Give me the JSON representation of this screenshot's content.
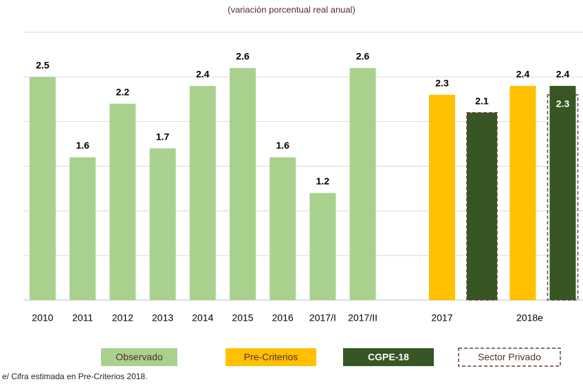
{
  "chart_data": {
    "type": "bar",
    "subtitle": "(variación porcentual real anual)",
    "categories": [
      "2010",
      "2011",
      "2012",
      "2013",
      "2014",
      "2015",
      "2016",
      "2017/I",
      "2017/II",
      "2017",
      "2018e"
    ],
    "series": [
      {
        "name": "Observado",
        "color": "#a9d18e",
        "values": [
          2.5,
          1.6,
          2.2,
          1.7,
          2.4,
          2.6,
          1.6,
          1.2,
          2.6,
          null,
          null
        ]
      },
      {
        "name": "Pre-Criterios",
        "color": "#ffc000",
        "values": [
          null,
          null,
          null,
          null,
          null,
          null,
          null,
          null,
          null,
          2.3,
          2.4
        ]
      },
      {
        "name": "CGPE-18",
        "color": "#375623",
        "values": [
          null,
          null,
          null,
          null,
          null,
          null,
          null,
          null,
          null,
          null,
          2.4
        ]
      },
      {
        "name": "Sector Privado",
        "color": "#6b3a3a",
        "values": [
          null,
          null,
          null,
          null,
          null,
          null,
          null,
          null,
          null,
          2.1,
          2.3
        ]
      }
    ],
    "ylim": [
      0,
      3
    ],
    "yticks": [
      0,
      0.5,
      1,
      1.5,
      2,
      2.5,
      3
    ],
    "grid": true,
    "legend": "bottom",
    "footnote": "e/ Cifra estimada en Pre-Criterios 2018."
  }
}
